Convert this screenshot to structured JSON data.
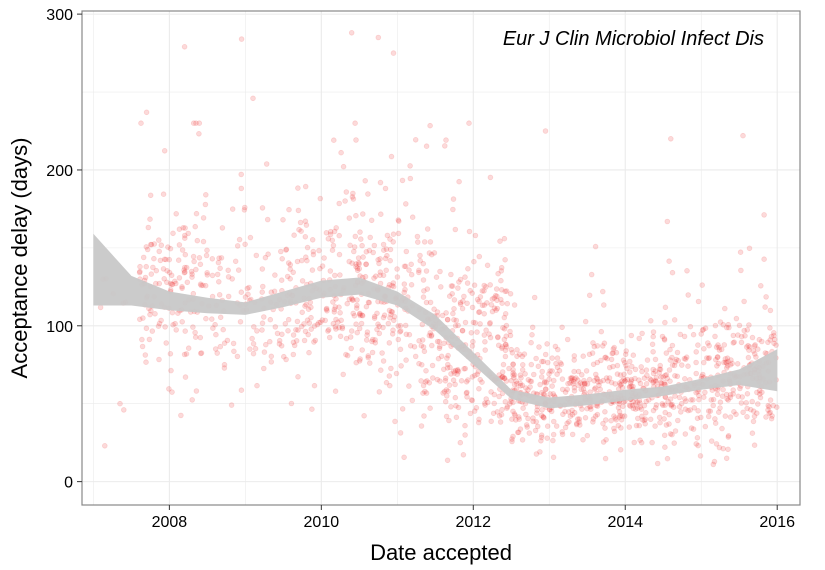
{
  "chart_data": {
    "type": "scatter",
    "title": "",
    "annotation": "Eur J Clin Microbiol Infect Dis",
    "xlabel": "Date accepted",
    "ylabel": "Acceptance delay (days)",
    "xlim": [
      2006.85,
      2016.3
    ],
    "ylim": [
      -15,
      302
    ],
    "x_ticks": [
      2008,
      2010,
      2012,
      2014,
      2016
    ],
    "x_tick_labels": [
      "2008",
      "2010",
      "2012",
      "2014",
      "2016"
    ],
    "y_ticks": [
      0,
      100,
      200,
      300
    ],
    "y_tick_labels": [
      "0",
      "100",
      "200",
      "300"
    ],
    "grid": true,
    "legend": "none",
    "colors": {
      "points": "#ee3333",
      "ribbon": "#c8c8c8",
      "grid": "#ebebeb",
      "panel_border": "#888888"
    },
    "scatter_style": {
      "opacity": 0.18
    },
    "scatter_density": [
      {
        "x_range": [
          2007.0,
          2007.6
        ],
        "count": 6,
        "y_mean": 95,
        "y_sd": 55
      },
      {
        "x_range": [
          2007.6,
          2008.5
        ],
        "count": 160,
        "y_mean": 120,
        "y_sd": 50
      },
      {
        "x_range": [
          2008.5,
          2009.5
        ],
        "count": 110,
        "y_mean": 110,
        "y_sd": 50
      },
      {
        "x_range": [
          2009.5,
          2010.5
        ],
        "count": 190,
        "y_mean": 120,
        "y_sd": 52
      },
      {
        "x_range": [
          2010.5,
          2011.5
        ],
        "count": 230,
        "y_mean": 110,
        "y_sd": 55
      },
      {
        "x_range": [
          2011.5,
          2012.5
        ],
        "count": 260,
        "y_mean": 85,
        "y_sd": 50
      },
      {
        "x_range": [
          2012.5,
          2013.5
        ],
        "count": 230,
        "y_mean": 55,
        "y_sd": 30
      },
      {
        "x_range": [
          2013.5,
          2014.5
        ],
        "count": 240,
        "y_mean": 58,
        "y_sd": 30
      },
      {
        "x_range": [
          2014.5,
          2015.5
        ],
        "count": 220,
        "y_mean": 62,
        "y_sd": 35
      },
      {
        "x_range": [
          2015.5,
          2016.0
        ],
        "count": 110,
        "y_mean": 72,
        "y_sd": 40
      }
    ],
    "smooth_ribbon": {
      "x": [
        2007.0,
        2007.5,
        2008.0,
        2008.5,
        2009.0,
        2009.5,
        2010.0,
        2010.5,
        2011.0,
        2011.5,
        2012.0,
        2012.5,
        2013.0,
        2013.5,
        2014.0,
        2014.5,
        2015.0,
        2015.5,
        2016.0
      ],
      "lower": [
        113,
        113,
        110,
        108,
        107,
        112,
        118,
        120,
        113,
        97,
        75,
        53,
        47,
        49,
        52,
        55,
        59,
        62,
        58
      ],
      "upper": [
        159,
        132,
        122,
        118,
        115,
        122,
        129,
        131,
        122,
        107,
        83,
        59,
        54,
        56,
        59,
        61,
        66,
        72,
        85
      ]
    },
    "highlight_points": [
      {
        "x": 2007.15,
        "y": 23
      },
      {
        "x": 2007.35,
        "y": 50
      },
      {
        "x": 2007.4,
        "y": 46
      },
      {
        "x": 2007.7,
        "y": 237
      },
      {
        "x": 2008.2,
        "y": 279
      },
      {
        "x": 2008.95,
        "y": 284
      },
      {
        "x": 2009.1,
        "y": 246
      },
      {
        "x": 2010.4,
        "y": 288
      },
      {
        "x": 2010.75,
        "y": 285
      },
      {
        "x": 2010.95,
        "y": 275
      },
      {
        "x": 2012.95,
        "y": 225
      },
      {
        "x": 2014.6,
        "y": 220
      },
      {
        "x": 2015.55,
        "y": 222
      }
    ]
  }
}
